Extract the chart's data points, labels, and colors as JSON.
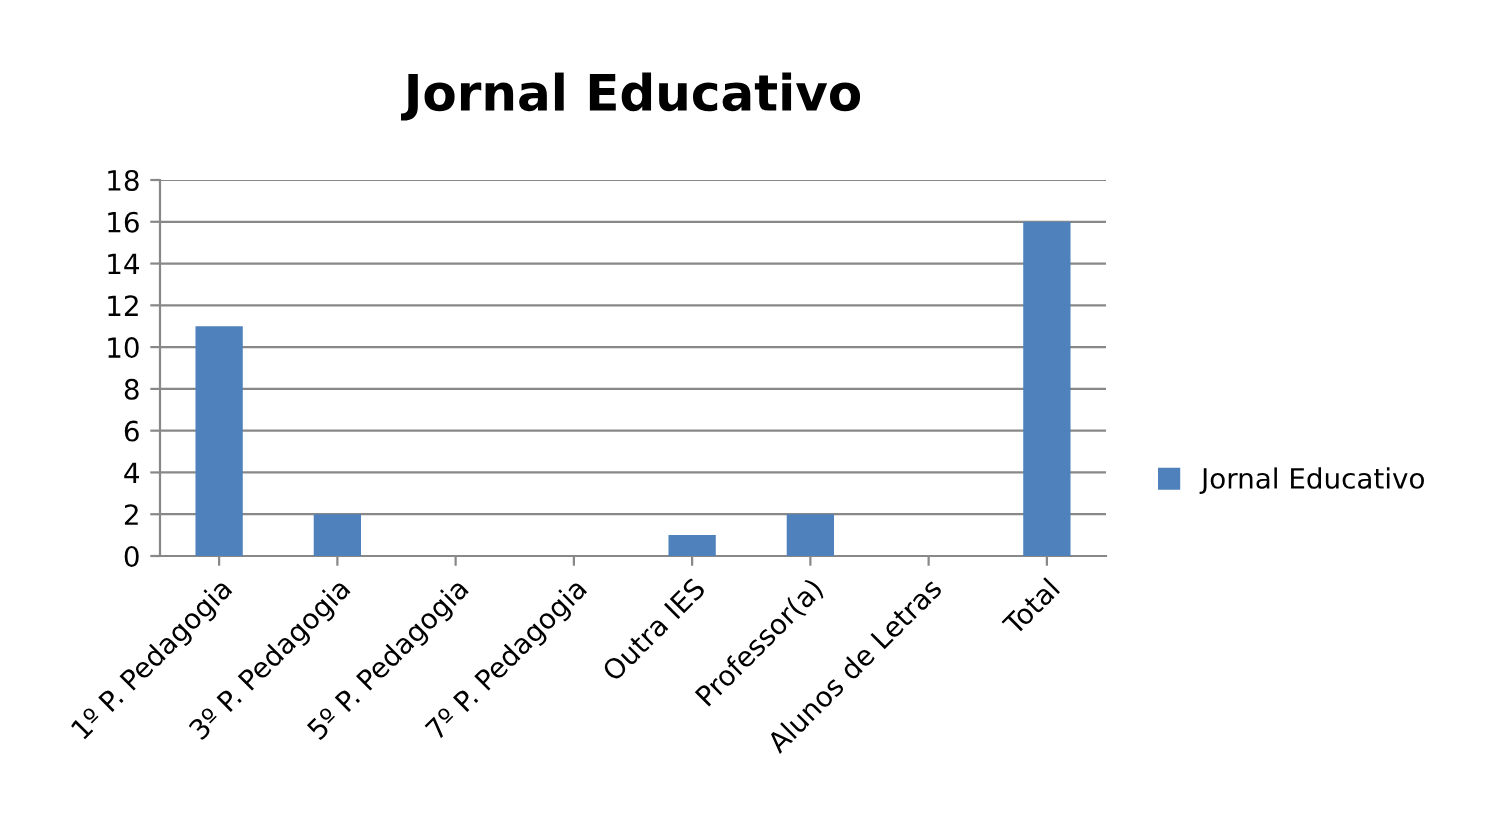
{
  "chart_data": {
    "type": "bar",
    "title": "Jornal Educativo",
    "categories": [
      "1º P. Pedagogia",
      "3º P. Pedagogia",
      "5º P. Pedagogia",
      "7º P. Pedagogia",
      "Outra IES",
      "Professor(a)",
      "Alunos de Letras",
      "Total"
    ],
    "series": [
      {
        "name": "Jornal Educativo",
        "color": "#4f81bd",
        "values": [
          11,
          2,
          0,
          0,
          1,
          2,
          0,
          16
        ]
      }
    ],
    "ylim": [
      0,
      18
    ],
    "yticks": [
      0,
      2,
      4,
      6,
      8,
      10,
      12,
      14,
      16,
      18
    ],
    "grid": "y",
    "legend": "right"
  }
}
